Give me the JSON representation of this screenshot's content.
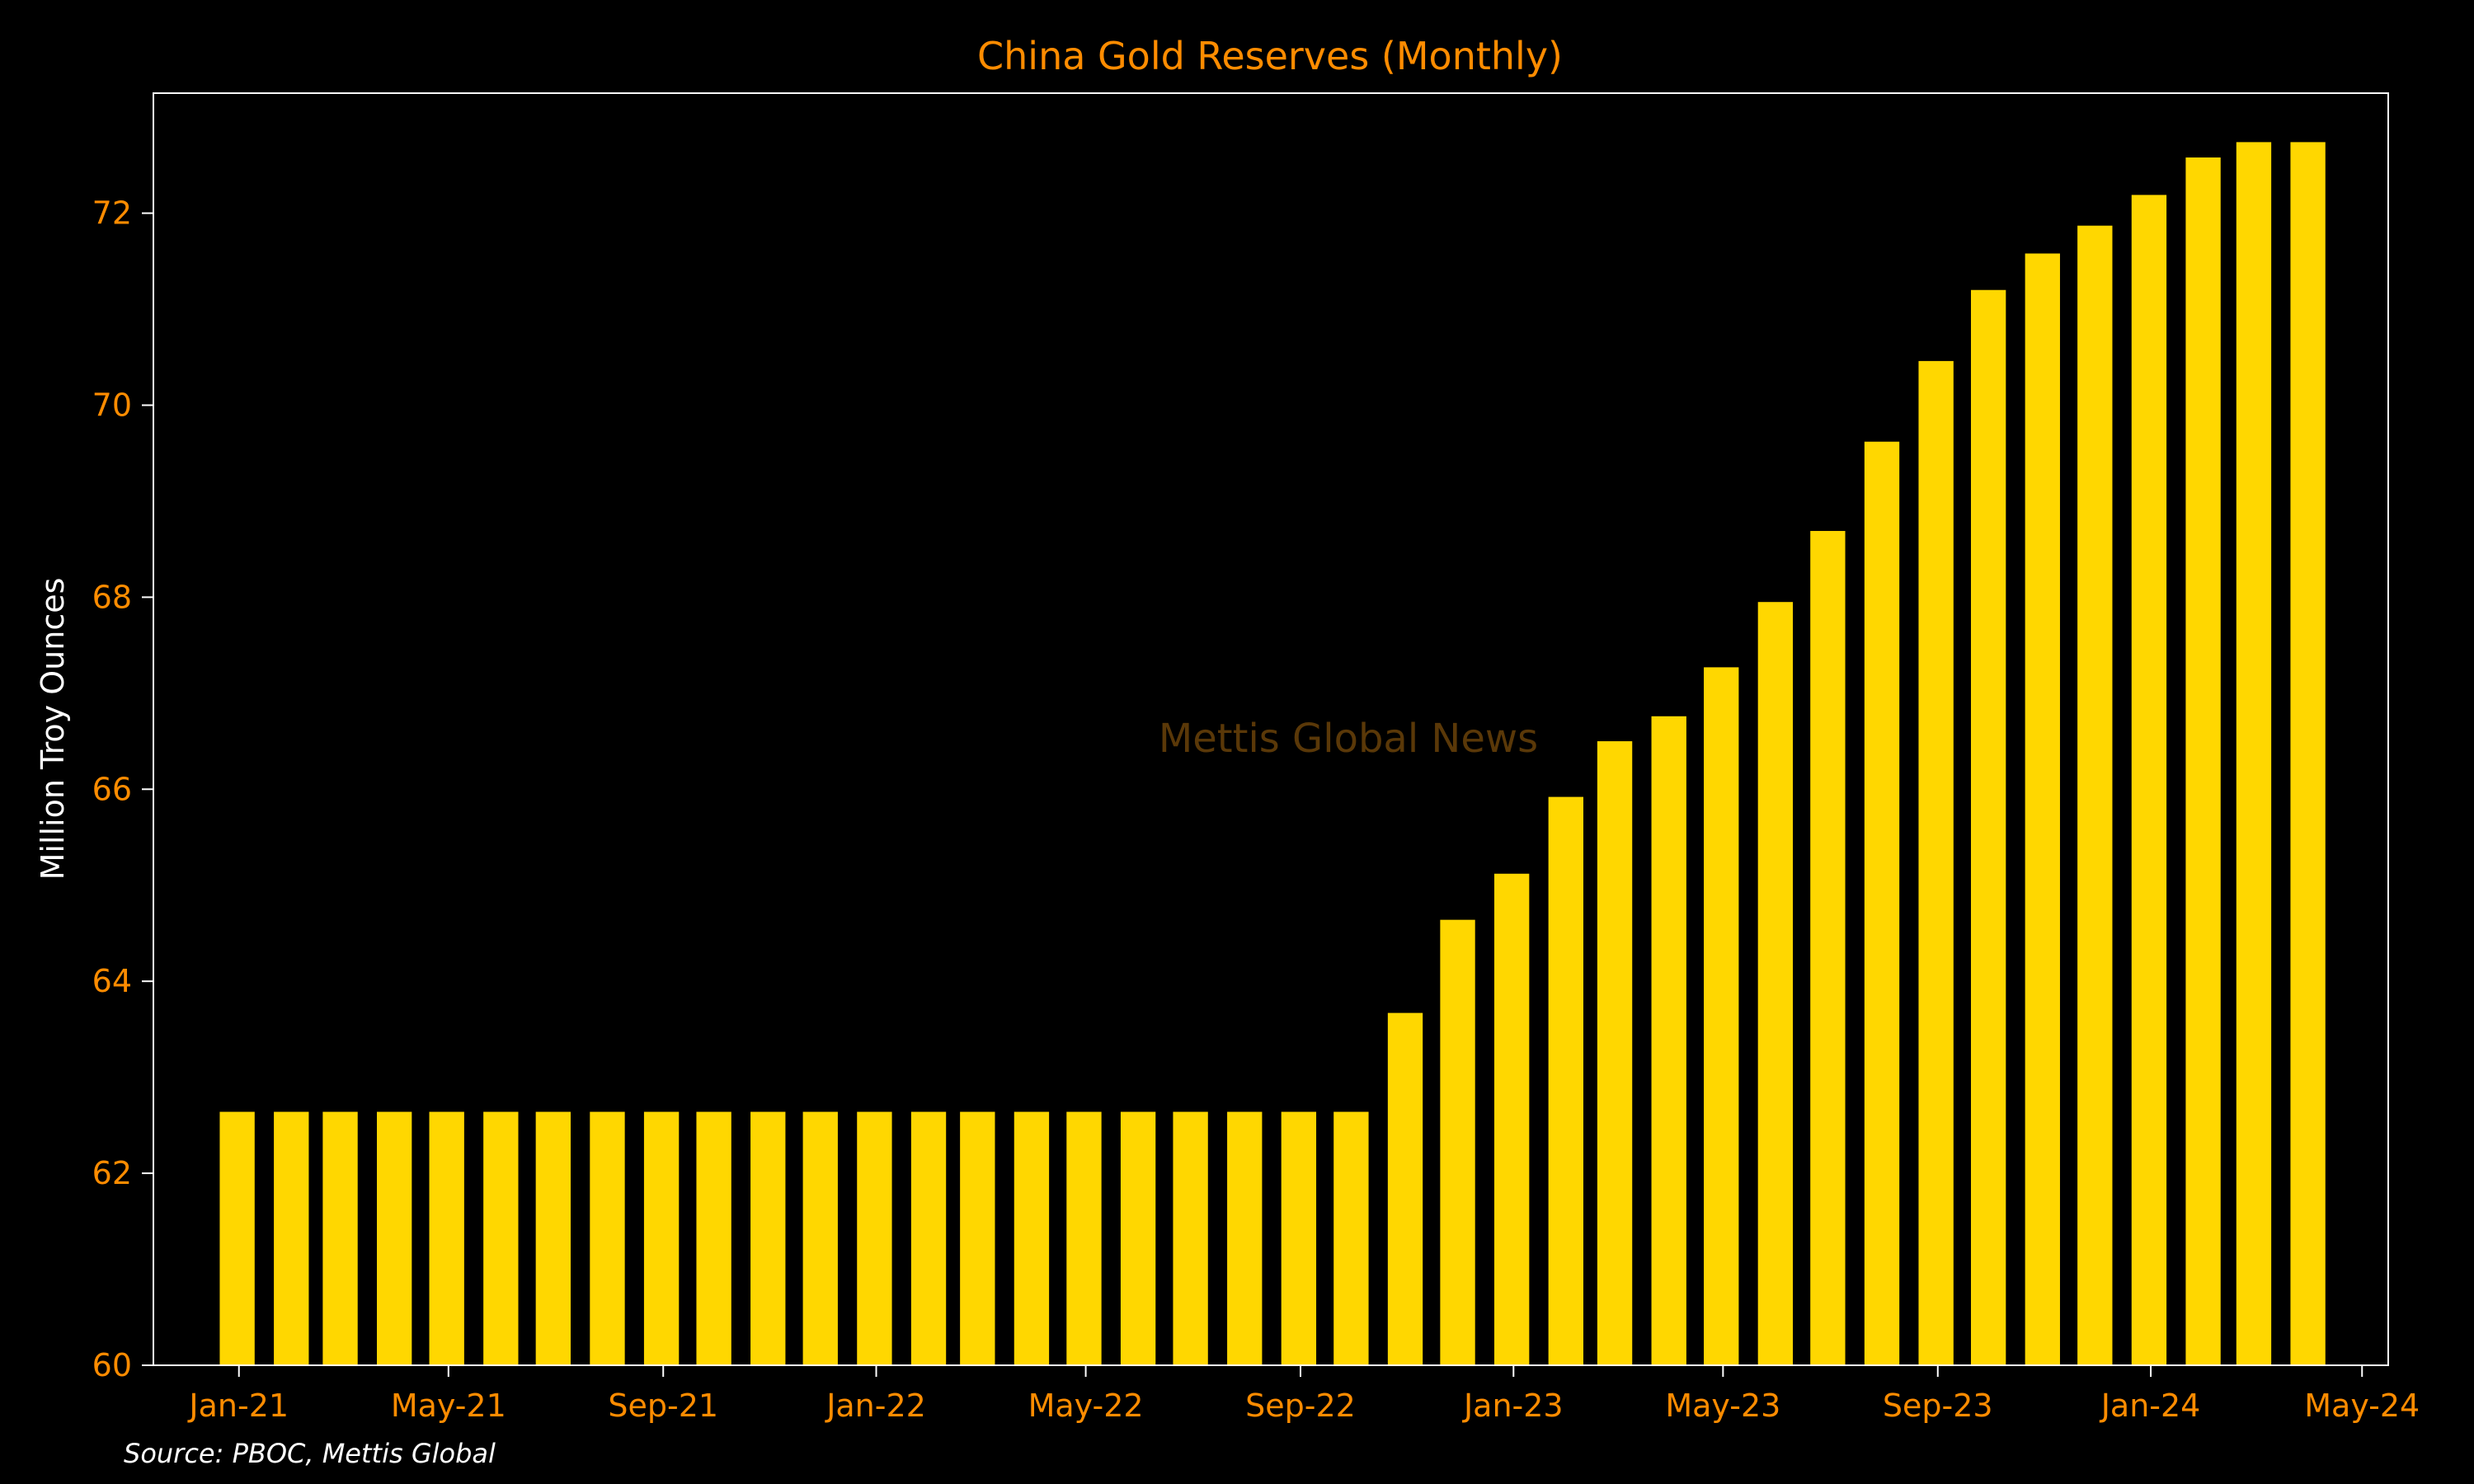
{
  "chart_data": {
    "type": "bar",
    "title": "China Gold Reserves (Monthly)",
    "xlabel": "",
    "ylabel": "Million Troy Ounces",
    "watermark": "Mettis Global News",
    "source": "Source: PBOC, Mettis Global",
    "ylim": [
      60,
      73.25
    ],
    "xlim": [
      "2020-11-13",
      "2024-05-16"
    ],
    "yticks": [
      60,
      62,
      64,
      66,
      68,
      70,
      72
    ],
    "xticks": [
      {
        "date": "2021-01-01",
        "label": "Jan-21"
      },
      {
        "date": "2021-05-01",
        "label": "May-21"
      },
      {
        "date": "2021-09-01",
        "label": "Sep-21"
      },
      {
        "date": "2022-01-01",
        "label": "Jan-22"
      },
      {
        "date": "2022-05-01",
        "label": "May-22"
      },
      {
        "date": "2022-09-01",
        "label": "Sep-22"
      },
      {
        "date": "2023-01-01",
        "label": "Jan-23"
      },
      {
        "date": "2023-05-01",
        "label": "May-23"
      },
      {
        "date": "2023-09-01",
        "label": "Sep-23"
      },
      {
        "date": "2024-01-01",
        "label": "Jan-24"
      },
      {
        "date": "2024-05-01",
        "label": "May-24"
      }
    ],
    "x": [
      "2020-12-31",
      "2021-01-31",
      "2021-02-28",
      "2021-03-31",
      "2021-04-30",
      "2021-05-31",
      "2021-06-30",
      "2021-07-31",
      "2021-08-31",
      "2021-09-30",
      "2021-10-31",
      "2021-11-30",
      "2021-12-31",
      "2022-01-31",
      "2022-02-28",
      "2022-03-31",
      "2022-04-30",
      "2022-05-31",
      "2022-06-30",
      "2022-07-31",
      "2022-08-31",
      "2022-09-30",
      "2022-10-31",
      "2022-11-30",
      "2022-12-31",
      "2023-01-31",
      "2023-02-28",
      "2023-03-31",
      "2023-04-30",
      "2023-05-31",
      "2023-06-30",
      "2023-07-31",
      "2023-08-31",
      "2023-09-30",
      "2023-10-31",
      "2023-11-30",
      "2023-12-31",
      "2024-01-31",
      "2024-02-29",
      "2024-03-31"
    ],
    "values": [
      62.64,
      62.64,
      62.64,
      62.64,
      62.64,
      62.64,
      62.64,
      62.64,
      62.64,
      62.64,
      62.64,
      62.64,
      62.64,
      62.64,
      62.64,
      62.64,
      62.64,
      62.64,
      62.64,
      62.64,
      62.64,
      62.64,
      63.67,
      64.64,
      65.12,
      65.92,
      66.5,
      66.76,
      67.27,
      67.95,
      68.69,
      69.62,
      70.46,
      71.2,
      71.58,
      71.87,
      72.19,
      72.58,
      72.74,
      72.74
    ],
    "grid": false,
    "legend": "none",
    "colors": {
      "bar": "#ffd700",
      "background": "#000000",
      "axes": "#ffffff",
      "text": "#ff8c00",
      "watermark": "#5a3808",
      "ylabel": "#ffffff",
      "source": "#ffffff"
    }
  }
}
